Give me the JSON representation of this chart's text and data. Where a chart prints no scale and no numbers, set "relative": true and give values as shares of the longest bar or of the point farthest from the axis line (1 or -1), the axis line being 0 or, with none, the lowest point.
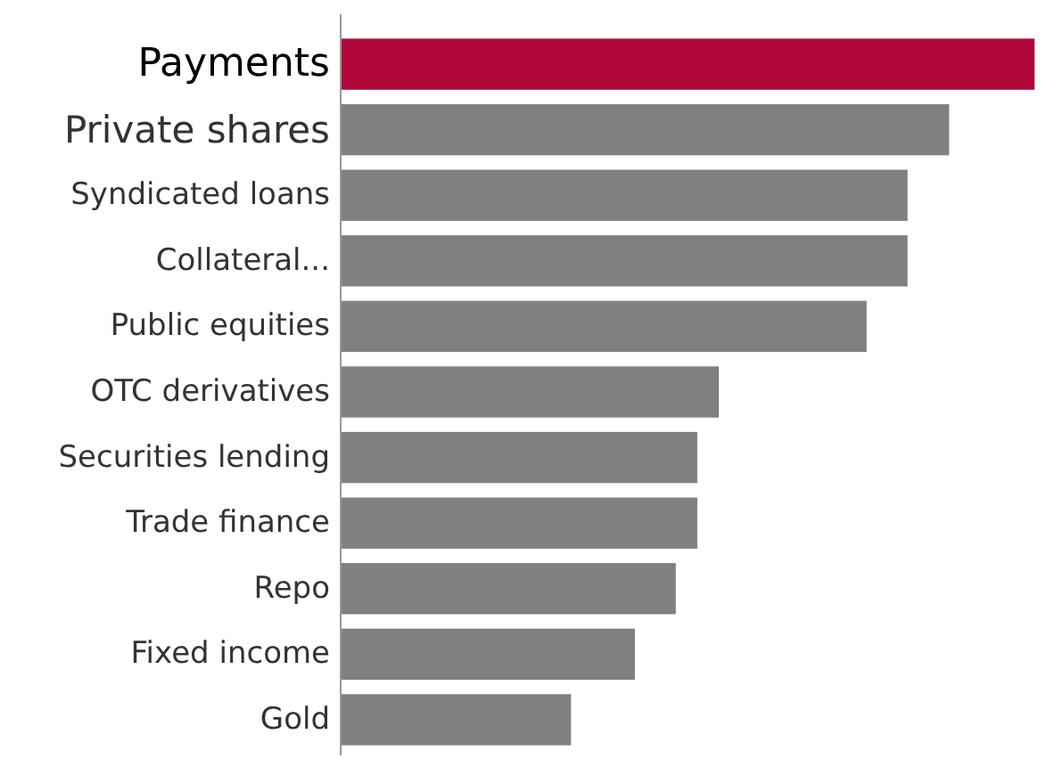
{
  "chart_data": {
    "type": "bar",
    "orientation": "horizontal",
    "relative": true,
    "categories": [
      "Payments",
      "Private shares",
      "Syndicated loans",
      "Collateral...",
      "Public equities",
      "OTC derivatives",
      "Securities lending",
      "Trade finance",
      "Repo",
      "Fixed income",
      "Gold"
    ],
    "values": [
      1,
      0.877,
      0.817,
      0.817,
      0.758,
      0.545,
      0.514,
      0.514,
      0.483,
      0.424,
      0.332
    ],
    "colors": [
      "#b0063a",
      "#808080",
      "#808080",
      "#808080",
      "#808080",
      "#808080",
      "#808080",
      "#808080",
      "#808080",
      "#808080",
      "#808080"
    ]
  }
}
